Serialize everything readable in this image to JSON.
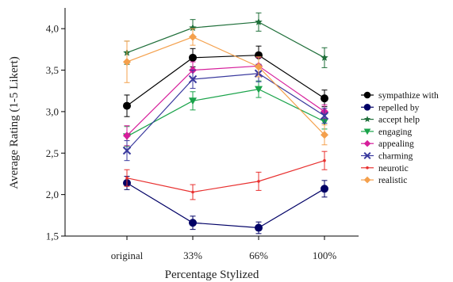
{
  "chart_data": {
    "type": "line",
    "title": "",
    "xlabel": "Percentage Stylized",
    "ylabel": "Average Rating (1-5 Likert)",
    "categories": [
      "original",
      "33%",
      "66%",
      "100%"
    ],
    "ylim": [
      1.5,
      4.25
    ],
    "yticks": [
      1.5,
      2.0,
      2.5,
      3.0,
      3.5,
      4.0
    ],
    "ytick_labels": [
      "1,5",
      "2,0",
      "2,5",
      "3,0",
      "3,5",
      "4,0"
    ],
    "grid": false,
    "legend_position": "right",
    "error_bars": true,
    "series": [
      {
        "name": "sympathize with",
        "color": "#000000",
        "marker": "circle",
        "values": [
          3.07,
          3.65,
          3.68,
          3.16
        ],
        "errors": [
          0.13,
          0.11,
          0.11,
          0.1
        ]
      },
      {
        "name": "repelled by",
        "color": "#000066",
        "marker": "circle",
        "values": [
          2.14,
          1.66,
          1.6,
          2.07
        ],
        "errors": [
          0.08,
          0.08,
          0.07,
          0.1
        ]
      },
      {
        "name": "accept help",
        "color": "#1f6f3a",
        "marker": "star",
        "values": [
          3.71,
          4.01,
          4.08,
          3.65
        ],
        "errors": [
          0.14,
          0.1,
          0.11,
          0.12
        ]
      },
      {
        "name": "engaging",
        "color": "#1aa34a",
        "marker": "triangle-down",
        "values": [
          2.7,
          3.13,
          3.27,
          2.88
        ],
        "errors": [
          0.12,
          0.11,
          0.1,
          0.09
        ]
      },
      {
        "name": "appealing",
        "color": "#d61e9b",
        "marker": "diamond",
        "values": [
          2.71,
          3.5,
          3.55,
          3.0
        ],
        "errors": [
          0.12,
          0.1,
          0.1,
          0.08
        ]
      },
      {
        "name": "charming",
        "color": "#3a3a9e",
        "marker": "x",
        "values": [
          2.53,
          3.39,
          3.46,
          2.95
        ],
        "errors": [
          0.12,
          0.11,
          0.1,
          0.09
        ]
      },
      {
        "name": "neurotic",
        "color": "#e8302f",
        "marker": "dot",
        "values": [
          2.2,
          2.03,
          2.16,
          2.41
        ],
        "errors": [
          0.1,
          0.09,
          0.11,
          0.11
        ]
      },
      {
        "name": "realistic",
        "color": "#f4a04c",
        "marker": "diamond",
        "values": [
          3.6,
          3.9,
          3.54,
          2.72
        ],
        "errors": [
          0.25,
          0.1,
          0.12,
          0.12
        ]
      }
    ]
  }
}
